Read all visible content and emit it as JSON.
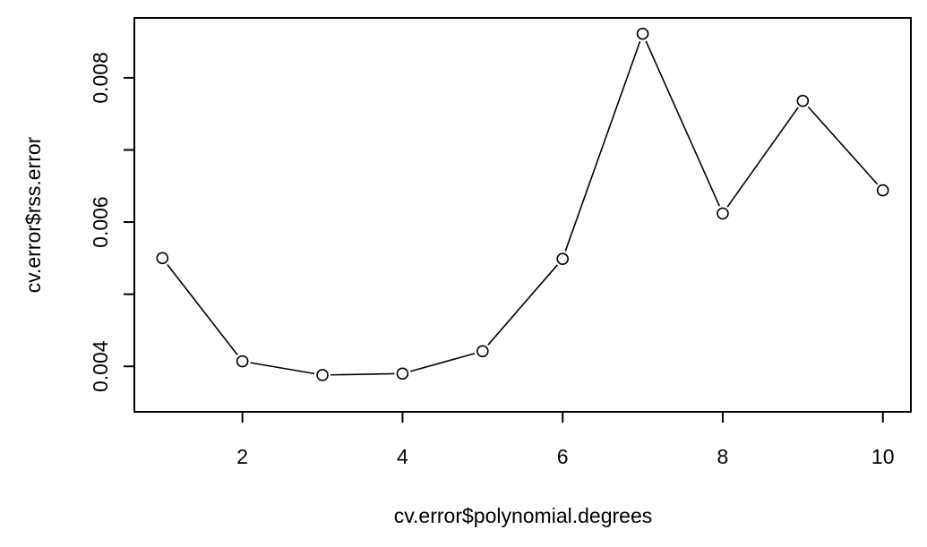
{
  "chart_data": {
    "type": "line",
    "title": "",
    "xlabel": "cv.error$polynomial.degrees",
    "ylabel": "cv.error$rss.error",
    "xlim": [
      0.65,
      10.35
    ],
    "ylim": [
      0.00337,
      0.00883
    ],
    "x_ticks": [
      2,
      4,
      6,
      8,
      10
    ],
    "x_tick_labels": [
      "2",
      "4",
      "6",
      "8",
      "10"
    ],
    "y_ticks": [
      0.004,
      0.005,
      0.006,
      0.007,
      0.008
    ],
    "y_tick_labels": [
      "0.004",
      "",
      "0.006",
      "",
      "0.008"
    ],
    "grid": false,
    "series": [
      {
        "x": [
          1,
          2,
          3,
          4,
          5,
          6,
          7,
          8,
          9,
          10
        ],
        "y": [
          0.0055,
          0.00407,
          0.00388,
          0.0039,
          0.00421,
          0.00549,
          0.00861,
          0.00612,
          0.00768,
          0.00644
        ],
        "color": "#000000",
        "marker": "open-circle"
      }
    ]
  }
}
